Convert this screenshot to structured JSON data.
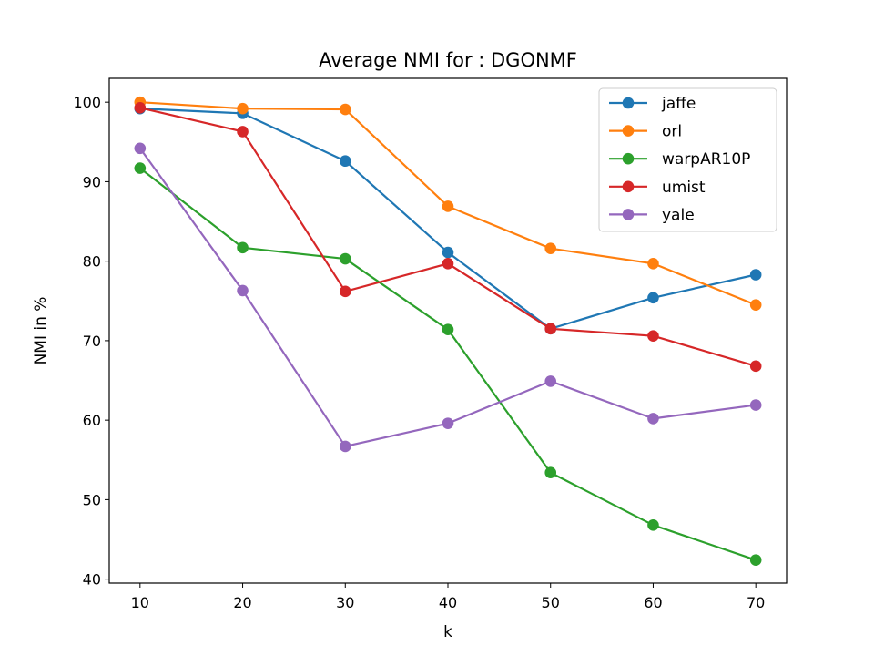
{
  "chart_data": {
    "type": "line",
    "title": "Average NMI for : DGONMF",
    "xlabel": "k",
    "ylabel": "NMI in %",
    "x": [
      10,
      20,
      30,
      40,
      50,
      60,
      70
    ],
    "xlim": [
      7,
      73
    ],
    "ylim": [
      39.5,
      103
    ],
    "xticks": [
      10,
      20,
      30,
      40,
      50,
      60,
      70
    ],
    "yticks": [
      40,
      50,
      60,
      70,
      80,
      90,
      100
    ],
    "grid": false,
    "legend_position": "top-right",
    "series": [
      {
        "name": "jaffe",
        "color": "#1f77b4",
        "values": [
          99.2,
          98.6,
          92.6,
          81.1,
          71.5,
          75.4,
          78.3
        ]
      },
      {
        "name": "orl",
        "color": "#ff7f0e",
        "values": [
          100.0,
          99.2,
          99.1,
          86.9,
          81.6,
          79.7,
          74.5
        ]
      },
      {
        "name": "warpAR10P",
        "color": "#2ca02c",
        "values": [
          91.7,
          81.7,
          80.3,
          71.4,
          53.4,
          46.8,
          42.4
        ]
      },
      {
        "name": "umist",
        "color": "#d62728",
        "values": [
          99.3,
          96.3,
          76.2,
          79.7,
          71.5,
          70.6,
          66.8
        ]
      },
      {
        "name": "yale",
        "color": "#9467bd",
        "values": [
          94.2,
          76.3,
          56.7,
          59.6,
          64.9,
          60.2,
          61.9
        ]
      }
    ]
  }
}
